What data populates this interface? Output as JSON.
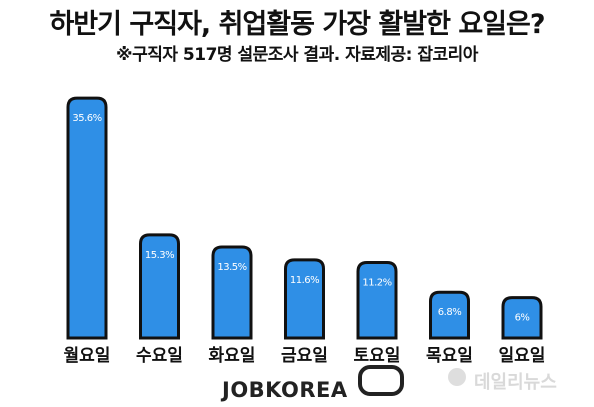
{
  "title": "하반기 구직자, 취업활동 가장 활발한 요일은?",
  "subtitle": "※구직자 517명  설문조사 결과. 자료제공: 잡코리아",
  "logo": "JOBKOREA",
  "watermark": "데일리뉴스",
  "colors": {
    "bar": "#2f8fe6",
    "bar_outline": "#111111",
    "label": "#ffffff"
  },
  "chart_data": {
    "type": "bar",
    "categories": [
      "월요일",
      "수요일",
      "화요일",
      "금요일",
      "토요일",
      "목요일",
      "일요일"
    ],
    "values": [
      35.6,
      15.3,
      13.5,
      11.6,
      11.2,
      6.8,
      6
    ],
    "data_labels": [
      "35.6%",
      "15.3%",
      "13.5%",
      "11.6%",
      "11.2%",
      "6.8%",
      "6%"
    ],
    "ylim": [
      0,
      38
    ],
    "grid": false,
    "legend": "none"
  }
}
